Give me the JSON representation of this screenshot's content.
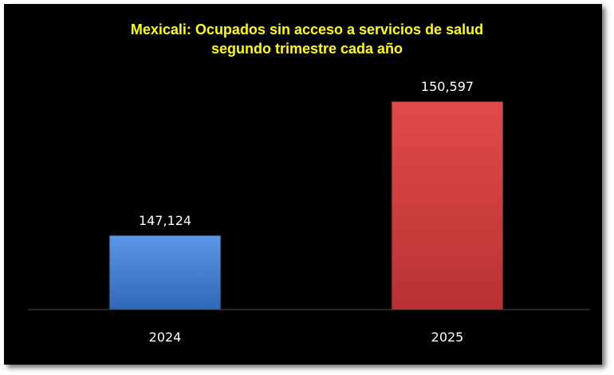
{
  "chart_data": {
    "type": "bar",
    "title": "Mexicali: Ocupados sin acceso a servicios de salud",
    "subtitle": "segundo trimestre cada año",
    "categories": [
      "2024",
      "2025"
    ],
    "values": [
      147124,
      150597
    ],
    "value_labels": [
      "147,124",
      "150,597"
    ],
    "bar_colors": [
      "#3f7fd4",
      "#d43c3c"
    ],
    "ylim": [
      145200,
      150950
    ],
    "grid": false,
    "legend": "none",
    "background": "#000000",
    "title_color": "#ffff00",
    "text_color": "#ffffff"
  }
}
